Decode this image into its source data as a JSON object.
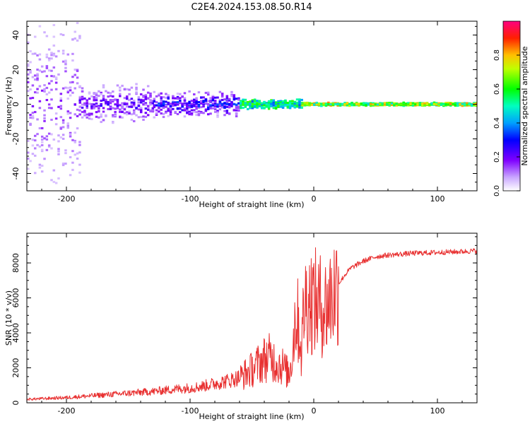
{
  "title": "C2E4.2024.153.08.50.R14",
  "colors": {
    "snr_line": "#e83030",
    "colormap": [
      "#ffffff",
      "#d7b8ff",
      "#8a2be2",
      "#5a00ff",
      "#0000ff",
      "#00c8ff",
      "#00ff80",
      "#80ff00",
      "#ffff00",
      "#ff8000",
      "#ff0000",
      "#ff0080"
    ]
  },
  "chart_data": [
    {
      "type": "heatmap",
      "title": "C2E4.2024.153.08.50.R14",
      "xlabel": "Height of straight line (km)",
      "ylabel": "Frequency (Hz)",
      "xlim": [
        -232,
        132
      ],
      "ylim": [
        -50,
        48
      ],
      "xticks": [
        -200,
        -100,
        0,
        100
      ],
      "xtick_labels": [
        "-200",
        "-100",
        "0",
        "100"
      ],
      "yticks": [
        -40,
        -20,
        0,
        20,
        40
      ],
      "ytick_labels": [
        "-40",
        "-20",
        "0",
        "20",
        "40"
      ],
      "colorbar": {
        "label": "Normalized spectral amplitude",
        "range": [
          0,
          1
        ],
        "ticks": [
          0,
          0.2,
          0.4,
          0.6,
          0.8
        ],
        "tick_labels": [
          "0.0",
          "0.2",
          "0.4",
          "0.6",
          "0.8"
        ]
      },
      "bands": [
        {
          "x_range": [
            -232,
            -190
          ],
          "freq_spread": 48,
          "amplitude": 0.15
        },
        {
          "x_range": [
            -190,
            -130
          ],
          "freq_spread": 12,
          "amplitude": 0.22
        },
        {
          "x_range": [
            -130,
            -60
          ],
          "freq_spread": 8,
          "amplitude": 0.3
        },
        {
          "x_range": [
            -60,
            -10
          ],
          "freq_spread": 3,
          "amplitude": 0.5
        },
        {
          "x_range": [
            -10,
            132
          ],
          "freq_spread": 1,
          "amplitude": 0.65
        }
      ]
    },
    {
      "type": "line",
      "xlabel": "Height of straight line (km)",
      "ylabel": "SNR (10 * v/v)",
      "xlim": [
        -232,
        132
      ],
      "ylim": [
        0,
        9700
      ],
      "xticks": [
        -200,
        -100,
        0,
        100
      ],
      "xtick_labels": [
        "-200",
        "-100",
        "0",
        "100"
      ],
      "yticks": [
        0,
        2000,
        4000,
        6000,
        8000
      ],
      "ytick_labels": [
        "0",
        "2000",
        "4000",
        "6000",
        "8000"
      ],
      "series": [
        {
          "name": "SNR",
          "x": [
            -232,
            -200,
            -170,
            -150,
            -130,
            -110,
            -100,
            -90,
            -80,
            -70,
            -60,
            -50,
            -45,
            -40,
            -35,
            -30,
            -25,
            -20,
            -17,
            -15,
            -12,
            -10,
            -8,
            -5,
            0,
            5,
            10,
            15,
            20,
            25,
            30,
            40,
            50,
            60,
            80,
            100,
            120,
            132
          ],
          "y": [
            200,
            300,
            450,
            550,
            650,
            800,
            850,
            950,
            1100,
            1250,
            1450,
            1900,
            2200,
            2500,
            2600,
            2300,
            2100,
            1600,
            3000,
            5000,
            4500,
            2800,
            5500,
            6000,
            5800,
            5600,
            5500,
            6200,
            6800,
            7300,
            7700,
            8100,
            8350,
            8450,
            8550,
            8600,
            8650,
            8700
          ]
        }
      ]
    }
  ]
}
